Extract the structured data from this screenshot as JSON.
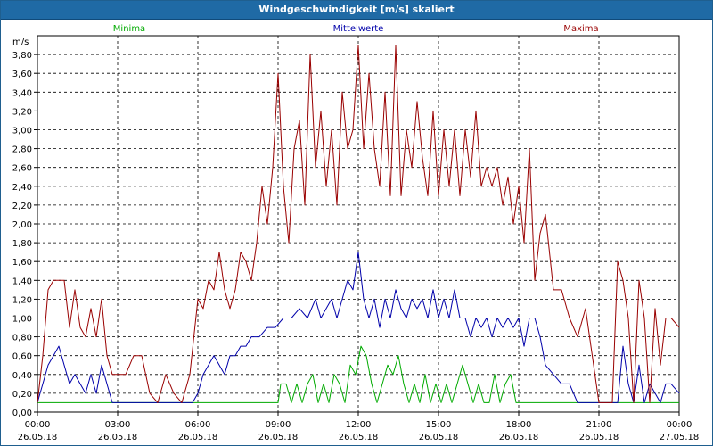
{
  "window": {
    "title": "Windgeschwindigkeit [m/s] skaliert"
  },
  "chart_data": {
    "type": "line",
    "title": "Windgeschwindigkeit [m/s] skaliert",
    "ylabel": "m/s",
    "ylim": [
      0,
      4.0
    ],
    "yticks": [
      "0,00",
      "0,20",
      "0,40",
      "0,60",
      "0,80",
      "1,00",
      "1,20",
      "1,40",
      "1,60",
      "1,80",
      "2,00",
      "2,20",
      "2,40",
      "2,60",
      "2,80",
      "3,00",
      "3,20",
      "3,40",
      "3,60",
      "3,80"
    ],
    "xticks": [
      {
        "time": "00:00",
        "date": "26.05.18"
      },
      {
        "time": "03:00",
        "date": "26.05.18"
      },
      {
        "time": "06:00",
        "date": "26.05.18"
      },
      {
        "time": "09:00",
        "date": "26.05.18"
      },
      {
        "time": "12:00",
        "date": "26.05.18"
      },
      {
        "time": "15:00",
        "date": "26.05.18"
      },
      {
        "time": "18:00",
        "date": "26.05.18"
      },
      {
        "time": "21:00",
        "date": "26.05.18"
      },
      {
        "time": "00:00",
        "date": "27.05.18"
      }
    ],
    "x_hours_range": [
      0,
      24
    ],
    "grid": true,
    "legend_position": "top",
    "series": [
      {
        "name": "Minima",
        "color": "#00aa00",
        "x": [
          0,
          9.0,
          9.1,
          9.3,
          9.5,
          9.7,
          9.9,
          10.1,
          10.3,
          10.5,
          10.7,
          10.9,
          11.1,
          11.3,
          11.5,
          11.7,
          11.9,
          12.1,
          12.3,
          12.5,
          12.7,
          12.9,
          13.1,
          13.3,
          13.5,
          13.7,
          13.9,
          14.1,
          14.3,
          14.5,
          14.7,
          14.9,
          15.1,
          15.3,
          15.5,
          15.7,
          15.9,
          16.1,
          16.3,
          16.5,
          16.7,
          16.9,
          17.1,
          17.3,
          17.5,
          17.7,
          17.9,
          18.0,
          24
        ],
        "values": [
          0.1,
          0.1,
          0.3,
          0.3,
          0.1,
          0.3,
          0.1,
          0.3,
          0.4,
          0.1,
          0.3,
          0.1,
          0.4,
          0.3,
          0.1,
          0.5,
          0.4,
          0.7,
          0.6,
          0.3,
          0.1,
          0.3,
          0.5,
          0.4,
          0.6,
          0.3,
          0.1,
          0.3,
          0.1,
          0.4,
          0.1,
          0.3,
          0.1,
          0.3,
          0.1,
          0.3,
          0.5,
          0.3,
          0.1,
          0.3,
          0.1,
          0.1,
          0.4,
          0.1,
          0.3,
          0.4,
          0.1,
          0.1,
          0.1
        ]
      },
      {
        "name": "Mittelwerte",
        "color": "#0000aa",
        "x": [
          0,
          0.2,
          0.4,
          0.6,
          0.8,
          1.0,
          1.2,
          1.4,
          1.6,
          1.8,
          2.0,
          2.2,
          2.4,
          2.6,
          2.8,
          3.0,
          4.0,
          4.5,
          5.0,
          5.5,
          5.8,
          6.0,
          6.2,
          6.4,
          6.6,
          6.8,
          7.0,
          7.2,
          7.4,
          7.6,
          7.8,
          8.0,
          8.3,
          8.6,
          8.9,
          9.2,
          9.5,
          9.8,
          10.1,
          10.4,
          10.6,
          10.8,
          11.0,
          11.2,
          11.4,
          11.6,
          11.8,
          12.0,
          12.2,
          12.4,
          12.6,
          12.8,
          13.0,
          13.2,
          13.4,
          13.6,
          13.8,
          14.0,
          14.2,
          14.4,
          14.6,
          14.8,
          15.0,
          15.2,
          15.4,
          15.6,
          15.8,
          16.0,
          16.2,
          16.4,
          16.6,
          16.8,
          17.0,
          17.2,
          17.4,
          17.6,
          17.8,
          18.0,
          18.2,
          18.4,
          18.6,
          18.8,
          19.0,
          19.3,
          19.6,
          19.9,
          20.2,
          20.5,
          21.0,
          21.5,
          21.7,
          21.9,
          22.1,
          22.3,
          22.5,
          22.7,
          22.9,
          23.1,
          23.3,
          23.5,
          23.7,
          24.0
        ],
        "values": [
          0.1,
          0.3,
          0.5,
          0.6,
          0.7,
          0.5,
          0.3,
          0.4,
          0.3,
          0.2,
          0.4,
          0.2,
          0.5,
          0.3,
          0.1,
          0.1,
          0.1,
          0.1,
          0.1,
          0.1,
          0.1,
          0.2,
          0.4,
          0.5,
          0.6,
          0.5,
          0.4,
          0.6,
          0.6,
          0.7,
          0.7,
          0.8,
          0.8,
          0.9,
          0.9,
          1.0,
          1.0,
          1.1,
          1.0,
          1.2,
          1.0,
          1.1,
          1.2,
          1.0,
          1.2,
          1.4,
          1.3,
          1.7,
          1.2,
          1.0,
          1.2,
          0.9,
          1.2,
          1.0,
          1.3,
          1.1,
          1.0,
          1.2,
          1.1,
          1.2,
          1.0,
          1.3,
          1.0,
          1.2,
          1.0,
          1.3,
          1.0,
          1.0,
          0.8,
          1.0,
          0.9,
          1.0,
          0.8,
          1.0,
          0.9,
          1.0,
          0.9,
          1.0,
          0.7,
          1.0,
          1.0,
          0.8,
          0.5,
          0.4,
          0.3,
          0.3,
          0.1,
          0.1,
          0.1,
          0.1,
          0.1,
          0.7,
          0.3,
          0.1,
          0.5,
          0.1,
          0.3,
          0.2,
          0.1,
          0.3,
          0.3,
          0.2
        ]
      },
      {
        "name": "Maxima",
        "color": "#990000",
        "x": [
          0,
          0.2,
          0.4,
          0.6,
          0.8,
          1.0,
          1.2,
          1.4,
          1.6,
          1.8,
          2.0,
          2.2,
          2.4,
          2.6,
          2.8,
          3.0,
          3.3,
          3.6,
          3.9,
          4.2,
          4.5,
          4.8,
          5.1,
          5.4,
          5.7,
          6.0,
          6.2,
          6.4,
          6.6,
          6.8,
          7.0,
          7.2,
          7.4,
          7.6,
          7.8,
          8.0,
          8.2,
          8.4,
          8.6,
          8.8,
          9.0,
          9.2,
          9.4,
          9.6,
          9.8,
          10.0,
          10.2,
          10.4,
          10.6,
          10.8,
          11.0,
          11.2,
          11.4,
          11.6,
          11.8,
          12.0,
          12.2,
          12.4,
          12.6,
          12.8,
          13.0,
          13.2,
          13.4,
          13.6,
          13.8,
          14.0,
          14.2,
          14.4,
          14.6,
          14.8,
          15.0,
          15.2,
          15.4,
          15.6,
          15.8,
          16.0,
          16.2,
          16.4,
          16.6,
          16.8,
          17.0,
          17.2,
          17.4,
          17.6,
          17.8,
          18.0,
          18.2,
          18.4,
          18.6,
          18.8,
          19.0,
          19.3,
          19.6,
          19.9,
          20.2,
          20.5,
          21.0,
          21.5,
          21.7,
          21.9,
          22.1,
          22.3,
          22.5,
          22.7,
          22.9,
          23.1,
          23.3,
          23.5,
          23.7,
          24.0
        ],
        "values": [
          0.1,
          0.6,
          1.3,
          1.4,
          1.4,
          1.4,
          0.9,
          1.3,
          0.9,
          0.8,
          1.1,
          0.8,
          1.2,
          0.6,
          0.4,
          0.4,
          0.4,
          0.6,
          0.6,
          0.2,
          0.1,
          0.4,
          0.2,
          0.1,
          0.4,
          1.2,
          1.1,
          1.4,
          1.3,
          1.7,
          1.3,
          1.1,
          1.3,
          1.7,
          1.6,
          1.4,
          1.8,
          2.4,
          2.0,
          2.6,
          3.6,
          2.4,
          1.8,
          2.8,
          3.1,
          2.2,
          3.8,
          2.6,
          3.2,
          2.4,
          3.0,
          2.2,
          3.4,
          2.8,
          3.0,
          3.9,
          2.8,
          3.6,
          2.8,
          2.4,
          3.4,
          2.3,
          3.9,
          2.3,
          3.0,
          2.6,
          3.3,
          2.7,
          2.3,
          3.2,
          2.3,
          3.0,
          2.4,
          3.0,
          2.3,
          3.0,
          2.5,
          3.2,
          2.4,
          2.6,
          2.4,
          2.6,
          2.2,
          2.5,
          2.0,
          2.4,
          1.8,
          2.8,
          1.4,
          1.9,
          2.1,
          1.3,
          1.3,
          1.0,
          0.8,
          1.1,
          0.1,
          0.1,
          1.6,
          1.4,
          1.0,
          0.1,
          1.4,
          1.0,
          0.1,
          1.1,
          0.5,
          1.0,
          1.0,
          0.9
        ]
      }
    ]
  }
}
